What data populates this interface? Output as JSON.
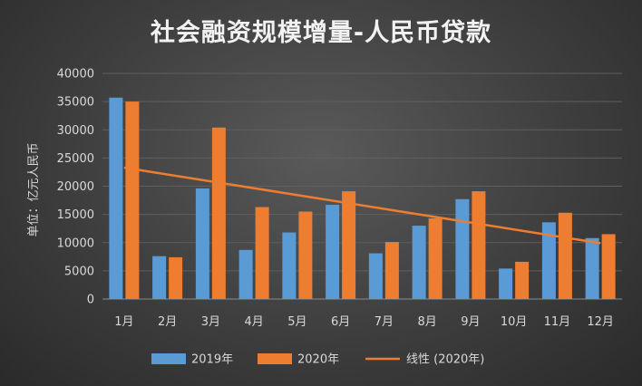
{
  "chart_data": {
    "type": "bar",
    "title": "社会融资规模增量-人民币贷款",
    "ylabel": "单位：亿元人民币",
    "xlabel": "",
    "categories": [
      "1月",
      "2月",
      "3月",
      "4月",
      "5月",
      "6月",
      "7月",
      "8月",
      "9月",
      "10月",
      "11月",
      "12月"
    ],
    "series": [
      {
        "name": "2019年",
        "color": "#5b9bd5",
        "values": [
          35700,
          7600,
          19600,
          8700,
          11800,
          16700,
          8100,
          13000,
          17700,
          5400,
          13600,
          10800
        ]
      },
      {
        "name": "2020年",
        "color": "#ed7d31",
        "values": [
          35000,
          7400,
          30400,
          16300,
          15500,
          19100,
          10100,
          14300,
          19100,
          6600,
          15300,
          11500
        ]
      }
    ],
    "trendline": {
      "name": "线性 (2020年)",
      "color": "#ed7d31",
      "start": 23300,
      "end": 9900
    },
    "yticks": [
      0,
      5000,
      10000,
      15000,
      20000,
      25000,
      30000,
      35000,
      40000
    ],
    "ylim": [
      0,
      40000
    ],
    "grid": true,
    "legend_position": "bottom"
  }
}
